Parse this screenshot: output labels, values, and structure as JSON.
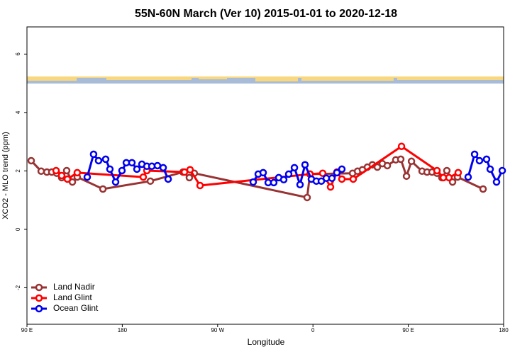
{
  "chart_data": {
    "type": "line",
    "title": "55N-60N March (Ver 10)   2015-01-01 to 2020-12-18",
    "x_label": "Longitude",
    "y_label": "XCO2 - MLO trend (ppm)",
    "xlim": [
      90,
      540
    ],
    "ylim": [
      -3.25,
      6.93
    ],
    "xticks": [
      {
        "value": 90,
        "label": "90 E"
      },
      {
        "value": 180,
        "label": "180"
      },
      {
        "value": 270,
        "label": "90 W"
      },
      {
        "value": 360,
        "label": "0"
      },
      {
        "value": 450,
        "label": "90 E"
      },
      {
        "value": 540,
        "label": "180"
      }
    ],
    "yticks": [
      -2,
      0,
      2,
      4,
      6
    ],
    "legend": "bottom-left",
    "series": [
      {
        "name": "Land Nadir",
        "color": "#993333",
        "x": [
          94,
          103.4,
          108.8,
          113.4,
          118.1,
          122.8,
          127.5,
          132.9,
          137.5,
          161.7,
          206.5,
          237.3,
          243.3,
          248,
          354.5,
          357.2,
          397.4,
          402.1,
          406.7,
          411.4,
          416.1,
          420.8,
          425.5,
          430.2,
          438.2,
          442.9,
          448.3,
          453,
          463,
          467.7,
          472.4,
          477.1,
          481.7,
          486.4,
          491.8,
          496.5,
          520.6
        ],
        "values": [
          2.35,
          1.99,
          1.96,
          1.96,
          1.92,
          1.77,
          2.01,
          1.62,
          1.79,
          1.38,
          1.65,
          1.96,
          1.77,
          1.92,
          1.09,
          1.89,
          1.92,
          1.99,
          2.04,
          2.13,
          2.21,
          2.13,
          2.25,
          2.18,
          2.38,
          2.4,
          1.82,
          2.33,
          1.99,
          1.96,
          1.96,
          1.92,
          1.77,
          2.01,
          1.62,
          1.79,
          1.38
        ]
      },
      {
        "name": "Land Glint",
        "color": "#ff0000",
        "x": [
          117.5,
          122.8,
          128.2,
          137.5,
          199.8,
          203.2,
          238.7,
          244,
          253.4,
          357.2,
          369.2,
          376.6,
          382.6,
          387.3,
          398,
          443.6,
          477.1,
          483.1,
          488.4,
          497.1
        ],
        "values": [
          2.01,
          1.84,
          1.72,
          1.94,
          1.79,
          2.01,
          1.96,
          2.04,
          1.5,
          1.89,
          1.92,
          1.45,
          1.96,
          1.72,
          1.72,
          2.84,
          2.01,
          1.77,
          1.77,
          1.94
        ]
      },
      {
        "name": "Ocean Glint",
        "color": "#0000ee",
        "x": [
          146.9,
          152.9,
          157.6,
          164.3,
          168.3,
          173.7,
          179.7,
          183.8,
          189.1,
          193.8,
          198.5,
          203.2,
          207.9,
          213.2,
          218.6,
          223.3,
          null,
          303.6,
          308.3,
          313,
          317.7,
          323,
          327.7,
          332.4,
          337.1,
          342.5,
          347.8,
          352.5,
          358.5,
          363.2,
          367.9,
          372.6,
          377.9,
          382.6,
          387.3,
          null,
          506.5,
          512.6,
          517.2,
          523.9,
          527.3,
          533.3,
          538.7
        ],
        "values": [
          1.79,
          2.57,
          2.35,
          2.4,
          2.06,
          1.62,
          2.01,
          2.28,
          2.28,
          2.06,
          2.23,
          2.16,
          2.16,
          2.18,
          2.11,
          1.72,
          null,
          1.62,
          1.89,
          1.94,
          1.6,
          1.6,
          1.77,
          1.7,
          1.89,
          2.11,
          1.53,
          2.21,
          1.72,
          1.65,
          1.65,
          1.75,
          1.75,
          1.94,
          2.06,
          null,
          1.79,
          2.57,
          2.35,
          2.4,
          2.06,
          1.62,
          2.01
        ]
      }
    ]
  }
}
